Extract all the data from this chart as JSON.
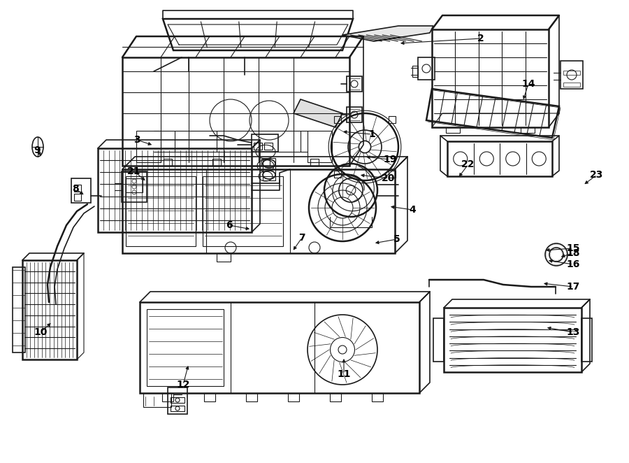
{
  "background_color": "#ffffff",
  "line_color": "#1a1a1a",
  "text_color": "#000000",
  "fig_width": 9.0,
  "fig_height": 6.62,
  "dpi": 100,
  "label_positions": {
    "1": [
      0.53,
      0.762,
      0.49,
      0.75
    ],
    "2": [
      0.685,
      0.93,
      0.57,
      0.915
    ],
    "3": [
      0.196,
      0.738,
      0.22,
      0.725
    ],
    "4": [
      0.59,
      0.488,
      0.558,
      0.48
    ],
    "5": [
      0.57,
      0.415,
      0.538,
      0.422
    ],
    "6": [
      0.33,
      0.442,
      0.36,
      0.452
    ],
    "7": [
      0.432,
      0.425,
      0.418,
      0.445
    ],
    "8": [
      0.108,
      0.582,
      0.122,
      0.568
    ],
    "9": [
      0.055,
      0.68,
      0.062,
      0.668
    ],
    "10": [
      0.06,
      0.188,
      0.075,
      0.215
    ],
    "11": [
      0.493,
      0.125,
      0.493,
      0.158
    ],
    "12": [
      0.264,
      0.118,
      0.272,
      0.145
    ],
    "13": [
      0.818,
      0.188,
      0.78,
      0.198
    ],
    "14": [
      0.756,
      0.84,
      0.748,
      0.808
    ],
    "15": [
      0.818,
      0.51,
      0.775,
      0.52
    ],
    "16": [
      0.818,
      0.452,
      0.78,
      0.458
    ],
    "17": [
      0.818,
      0.392,
      0.775,
      0.398
    ],
    "18": [
      0.818,
      0.472,
      0.785,
      0.475
    ],
    "19": [
      0.56,
      0.72,
      0.52,
      0.718
    ],
    "20": [
      0.558,
      0.672,
      0.515,
      0.665
    ],
    "21": [
      0.193,
      0.658,
      0.21,
      0.638
    ],
    "22": [
      0.672,
      0.672,
      0.655,
      0.7
    ],
    "23": [
      0.855,
      0.678,
      0.835,
      0.692
    ]
  }
}
